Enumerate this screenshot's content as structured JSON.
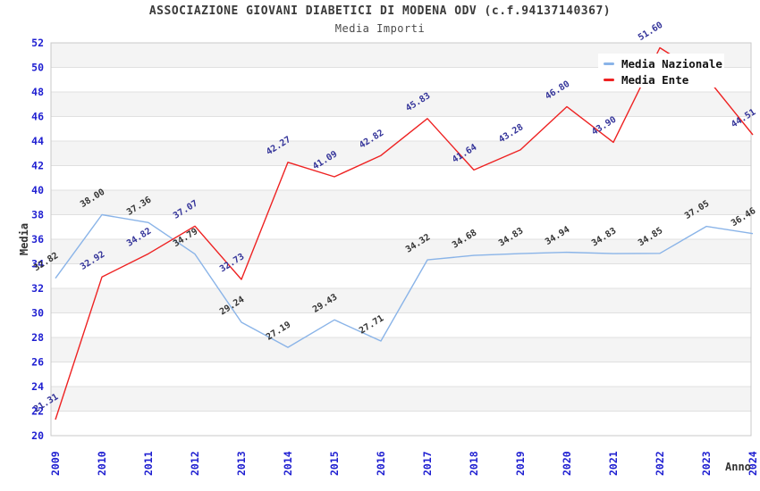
{
  "title": "ASSOCIAZIONE GIOVANI DIABETICI DI MODENA ODV (c.f.94137140367)",
  "subtitle": "Media Importi",
  "legend": [
    {
      "label": "Media Nazionale",
      "color": "#8ab4e8"
    },
    {
      "label": "Media Ente",
      "color": "#ee2222"
    }
  ],
  "colors": {
    "band": "#f4f4f4",
    "grid": "#e0e0e0",
    "plot_border": "#c9c9c9",
    "tick_label": "#1f1fd1",
    "background": "#ffffff"
  },
  "chart_data": {
    "type": "line",
    "title": "ASSOCIAZIONE GIOVANI DIABETICI DI MODENA ODV (c.f.94137140367)",
    "subtitle": "Media Importi",
    "xlabel": "Anno",
    "ylabel": "Media",
    "ylim": [
      20,
      52
    ],
    "ytick_step": 2,
    "grid": "horizontal-bands",
    "legend_position": "top-right",
    "categories": [
      "2009",
      "2010",
      "2011",
      "2012",
      "2013",
      "2014",
      "2015",
      "2016",
      "2017",
      "2018",
      "2019",
      "2020",
      "2021",
      "2022",
      "2023",
      "2024"
    ],
    "series": [
      {
        "name": "Media Nazionale",
        "color": "#8ab4e8",
        "label_color": "#333333",
        "values": [
          32.82,
          38.0,
          37.36,
          34.79,
          29.24,
          27.19,
          29.43,
          27.71,
          34.32,
          34.68,
          34.83,
          34.94,
          34.83,
          34.85,
          37.05,
          36.46
        ],
        "labels": [
          "32.82",
          "38.00",
          "37.36",
          "34.79",
          "29.24",
          "27.19",
          "29.43",
          "27.71",
          "34.32",
          "34.68",
          "34.83",
          "34.94",
          "34.83",
          "34.85",
          "37.05",
          "36.46"
        ]
      },
      {
        "name": "Media Ente",
        "color": "#ee2222",
        "label_color": "#333399",
        "values": [
          21.31,
          32.92,
          34.82,
          37.07,
          32.73,
          42.27,
          41.09,
          42.82,
          45.83,
          41.64,
          43.28,
          46.8,
          43.9,
          51.6,
          49.2,
          44.51
        ],
        "labels": [
          "21.31",
          "32.92",
          "34.82",
          "37.07",
          "32.73",
          "42.27",
          "41.09",
          "42.82",
          "45.83",
          "41.64",
          "43.28",
          "46.80",
          "43.90",
          "51.60",
          "",
          "44.51"
        ]
      }
    ]
  }
}
